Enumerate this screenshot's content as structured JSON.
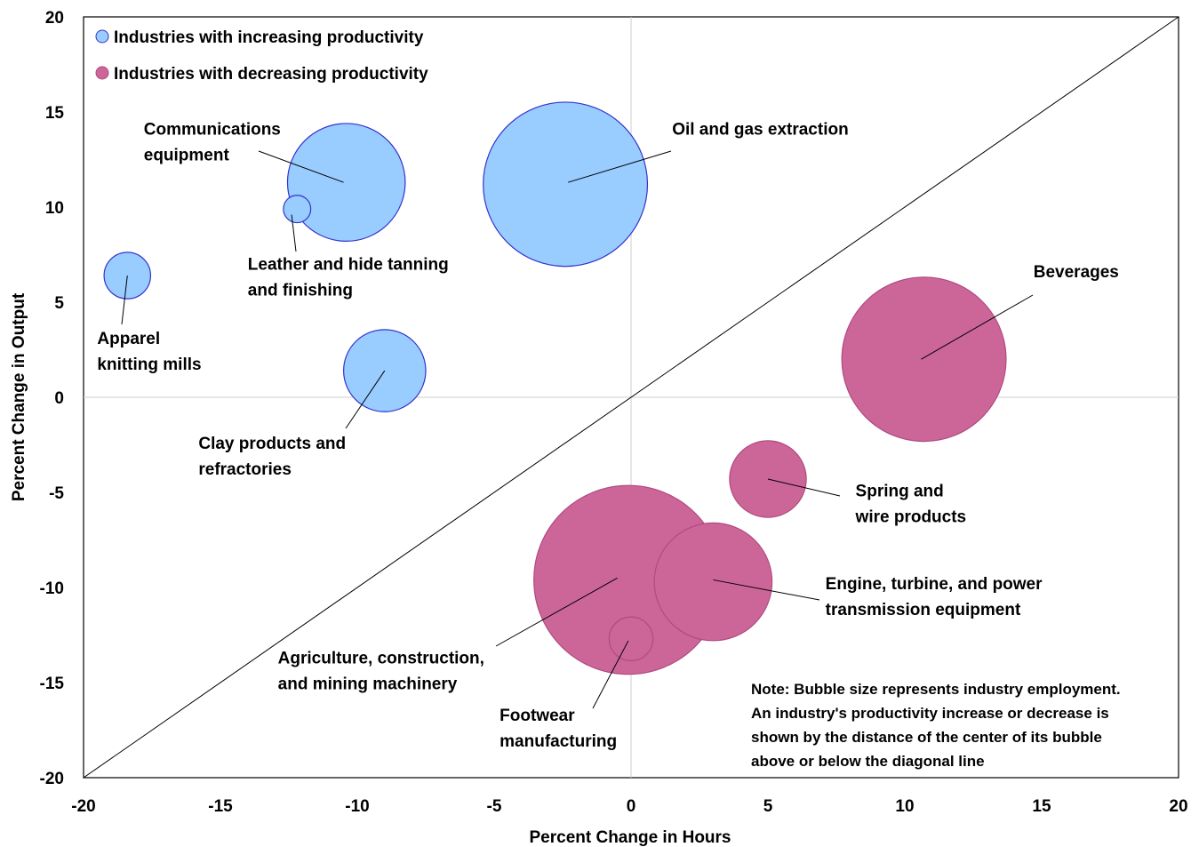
{
  "chart_data": {
    "type": "scatter",
    "title": "",
    "xlabel": "Percent Change in Hours",
    "ylabel": "Percent Change in Output",
    "xlim": [
      -20,
      20
    ],
    "ylim": [
      -20,
      20
    ],
    "xticks": [
      "-20",
      "-15",
      "-10",
      "-5",
      "0",
      "5",
      "10",
      "15",
      "20"
    ],
    "yticks": [
      "20",
      "15",
      "10",
      "5",
      "0",
      "-5",
      "-10",
      "-15",
      "-20"
    ],
    "grid": false,
    "reference_lines": [
      "x = 0",
      "y = 0",
      "diagonal y = x"
    ],
    "legend_position": "top-left",
    "colors": {
      "increasing_fill": "#99ccff",
      "increasing_stroke": "#3333cc",
      "decreasing_fill": "#cc6699",
      "decreasing_stroke": "#b04a80"
    },
    "series": [
      {
        "name": "Industries with increasing productivity",
        "points": [
          {
            "label": "Oil and gas extraction",
            "x": -2.4,
            "y": 11.2,
            "size": 3.0
          },
          {
            "label": "Communications equipment",
            "x": -10.4,
            "y": 11.3,
            "size": 2.15
          },
          {
            "label": "Leather and hide tanning and finishing",
            "x": -12.2,
            "y": 9.9,
            "size": 0.5
          },
          {
            "label": "Apparel knitting mills",
            "x": -18.4,
            "y": 6.4,
            "size": 0.85
          },
          {
            "label": "Clay products and refractories",
            "x": -9.0,
            "y": 1.4,
            "size": 1.5
          }
        ]
      },
      {
        "name": "Industries with decreasing productivity",
        "points": [
          {
            "label": "Beverages",
            "x": 10.7,
            "y": 2.0,
            "size": 3.0
          },
          {
            "label": "Spring and wire products",
            "x": 5.0,
            "y": -4.3,
            "size": 1.4
          },
          {
            "label": "Agriculture, construction, and mining machinery",
            "x": -0.1,
            "y": -9.6,
            "size": 3.45
          },
          {
            "label": "Engine, turbine, and power transmission equipment",
            "x": 3.0,
            "y": -9.7,
            "size": 2.15
          },
          {
            "label": "Footwear manufacturing",
            "x": 0.0,
            "y": -12.7,
            "size": 0.8
          }
        ]
      }
    ],
    "labels": [
      {
        "lines": [
          "Oil and gas extraction"
        ],
        "x": 1.5,
        "y": 13.8,
        "leader_to": [
          -2.3,
          11.3
        ]
      },
      {
        "lines": [
          "Communications",
          "equipment"
        ],
        "x": -17.8,
        "y": 13.8,
        "leader_to": [
          -10.5,
          11.3
        ]
      },
      {
        "lines": [
          "Leather and hide tanning",
          "and finishing"
        ],
        "x": -14.0,
        "y": 6.7,
        "leader_to": [
          -12.4,
          9.6
        ]
      },
      {
        "lines": [
          "Apparel",
          "knitting mills"
        ],
        "x": -19.5,
        "y": 2.8,
        "leader_to": [
          -18.4,
          6.4
        ]
      },
      {
        "lines": [
          "Clay products and",
          "refractories"
        ],
        "x": -15.8,
        "y": -2.7,
        "leader_to": [
          -9.0,
          1.4
        ]
      },
      {
        "lines": [
          "Beverages"
        ],
        "x": 14.7,
        "y": 6.3,
        "leader_to": [
          10.6,
          2.0
        ]
      },
      {
        "lines": [
          "Spring and",
          "wire products"
        ],
        "x": 8.2,
        "y": -5.2,
        "leader_to": [
          5.0,
          -4.3
        ]
      },
      {
        "lines": [
          "Engine, turbine, and power",
          "transmission equipment"
        ],
        "x": 7.1,
        "y": -10.1,
        "leader_to": [
          3.0,
          -9.6
        ]
      },
      {
        "lines": [
          "Agriculture, construction,",
          "and mining machinery"
        ],
        "x": -12.9,
        "y": -14.0,
        "leader_to": [
          -0.5,
          -9.5
        ]
      },
      {
        "lines": [
          "Footwear",
          "manufacturing"
        ],
        "x": -4.8,
        "y": -17.0,
        "leader_to": [
          -0.1,
          -12.8
        ]
      }
    ],
    "note": [
      "Note: Bubble size represents industry employment.",
      "An industry's productivity increase or decrease is",
      "shown by the distance of the center of its bubble",
      "above or below the diagonal line"
    ]
  }
}
